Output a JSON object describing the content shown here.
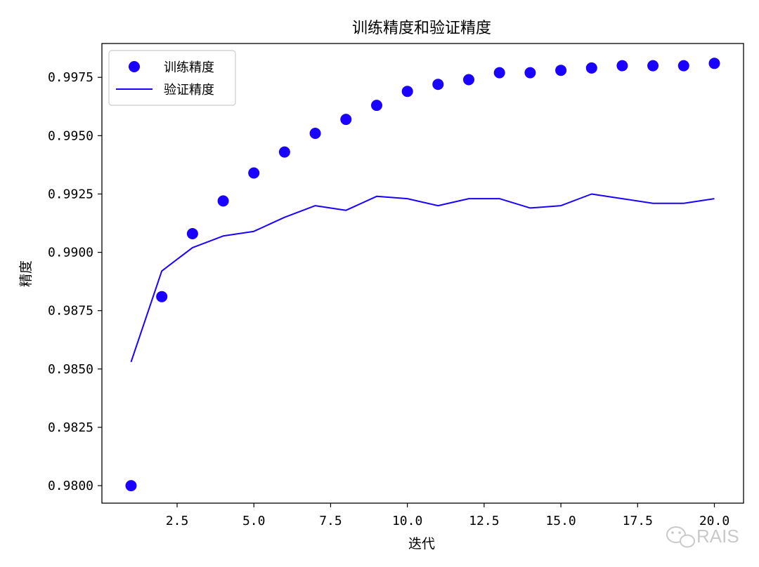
{
  "chart_data": {
    "type": "line",
    "title": "训练精度和验证精度",
    "xlabel": "迭代",
    "ylabel": "精度",
    "xlim": [
      0.05,
      20.95
    ],
    "ylim": [
      0.97925,
      0.99895
    ],
    "xticks": [
      2.5,
      5.0,
      7.5,
      10.0,
      12.5,
      15.0,
      17.5,
      20.0
    ],
    "xtick_labels": [
      "2.5",
      "5.0",
      "7.5",
      "10.0",
      "12.5",
      "15.0",
      "17.5",
      "20.0"
    ],
    "yticks": [
      0.98,
      0.9825,
      0.985,
      0.9875,
      0.99,
      0.9925,
      0.995,
      0.9975
    ],
    "ytick_labels": [
      "0.9800",
      "0.9825",
      "0.9850",
      "0.9875",
      "0.9900",
      "0.9925",
      "0.9950",
      "0.9975"
    ],
    "grid": false,
    "legend_position": "top-left",
    "series": [
      {
        "name": "训练精度",
        "style": "markers",
        "color": "#1a00ff",
        "x": [
          1,
          2,
          3,
          4,
          5,
          6,
          7,
          8,
          9,
          10,
          11,
          12,
          13,
          14,
          15,
          16,
          17,
          18,
          19,
          20
        ],
        "y": [
          0.98,
          0.9881,
          0.9908,
          0.9922,
          0.9934,
          0.9943,
          0.9951,
          0.9957,
          0.9963,
          0.9969,
          0.9972,
          0.9974,
          0.9977,
          0.9977,
          0.9978,
          0.9979,
          0.998,
          0.998,
          0.998,
          0.9981
        ]
      },
      {
        "name": "验证精度",
        "style": "line",
        "color": "#1a00ff",
        "x": [
          1,
          2,
          3,
          4,
          5,
          6,
          7,
          8,
          9,
          10,
          11,
          12,
          13,
          14,
          15,
          16,
          17,
          18,
          19,
          20
        ],
        "y": [
          0.9853,
          0.9892,
          0.9902,
          0.9907,
          0.9909,
          0.9915,
          0.992,
          0.9918,
          0.9924,
          0.9923,
          0.992,
          0.9923,
          0.9923,
          0.9919,
          0.992,
          0.9925,
          0.9923,
          0.9921,
          0.9921,
          0.9923
        ]
      }
    ]
  },
  "watermark": {
    "text": "RAIS",
    "icon": "wechat-icon"
  }
}
